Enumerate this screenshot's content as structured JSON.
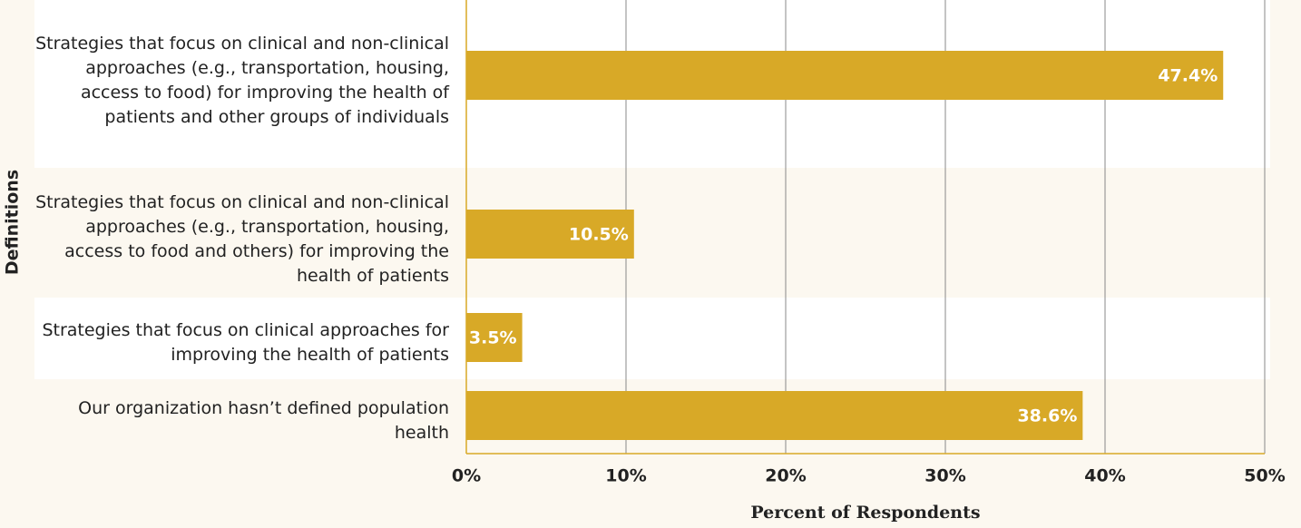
{
  "chart_data": {
    "type": "bar",
    "orientation": "horizontal",
    "xlabel": "Percent of Respondents",
    "ylabel": "Definitions",
    "categories": [
      "Strategies that focus on clinical and non-clinical approaches (e.g., transportation, housing, access to food) for improving the health of patients and other groups of individuals",
      "Strategies that focus on clinical and non-clinical approaches (e.g., transportation, housing, access to food and others) for improving the health of patients",
      "Strategies that focus on clinical approaches for improving the health of patients",
      "Our organization hasn’t defined population health"
    ],
    "values": [
      47.4,
      10.5,
      3.5,
      38.6
    ],
    "value_labels": [
      "47.4%",
      "10.5%",
      "3.5%",
      "38.6%"
    ],
    "color": "#d8a927",
    "xlim": [
      0,
      50
    ],
    "xticks": [
      {
        "value": 0,
        "label": "0%"
      },
      {
        "value": 10,
        "label": "10%"
      },
      {
        "value": 20,
        "label": "20%"
      },
      {
        "value": 30,
        "label": "30%"
      },
      {
        "value": 40,
        "label": "40%"
      },
      {
        "value": 50,
        "label": "50%"
      }
    ],
    "grid": true
  }
}
